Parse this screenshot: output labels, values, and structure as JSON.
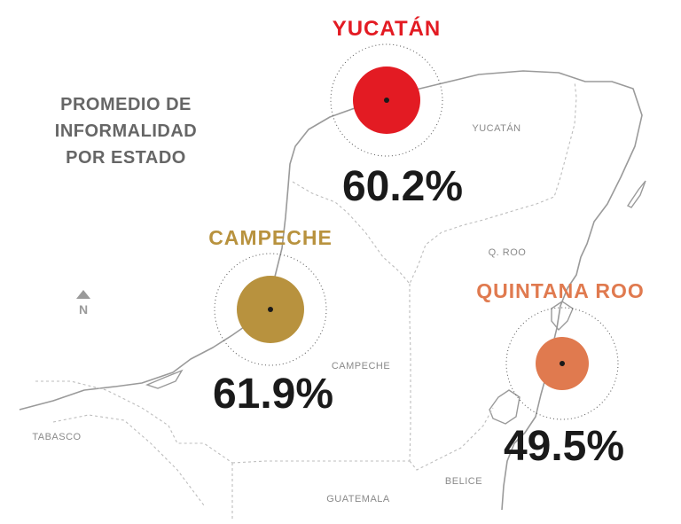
{
  "heading": [
    "PROMEDIO DE",
    "INFORMALIDAD",
    "POR ESTADO"
  ],
  "north_label": "N",
  "states": [
    {
      "name": "YUCATÁN",
      "value": "60.2%",
      "color": "#e31b23"
    },
    {
      "name": "CAMPECHE",
      "value": "61.9%",
      "color": "#b8923e"
    },
    {
      "name": "QUINTANA ROO",
      "value": "49.5%",
      "color": "#e07a4f"
    }
  ],
  "map_labels": {
    "yucatan": "YUCATÁN",
    "qroo": "Q. ROO",
    "campeche": "CAMPECHE",
    "tabasco": "TABASCO",
    "guatemala": "GUATEMALA",
    "belice": "BELICE"
  },
  "colors": {
    "coast": "#9a9a9a",
    "border": "#bdbdbd",
    "heading": "#666666"
  }
}
